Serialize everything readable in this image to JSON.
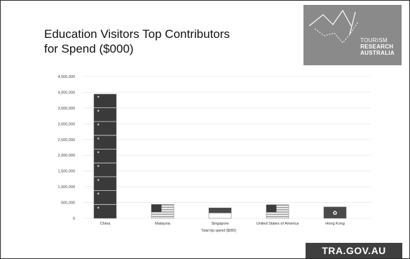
{
  "slide": {
    "title_line1": "Education Visitors Top Contributors",
    "title_line2": "for Spend ($000)",
    "logo": {
      "line1": "TOURISM",
      "line2": "RESEARCH",
      "line3": "AUSTRALIA"
    },
    "footer": "TRA.GOV.AU"
  },
  "chart_data": {
    "type": "bar",
    "title": "",
    "xlabel": "Total trip spend ($000)",
    "ylabel": "",
    "ylim": [
      0,
      4500000
    ],
    "yticks": [
      "0",
      "500,000",
      "1,000,000",
      "1,500,000",
      "2,000,000",
      "2,500,000",
      "3,000,000",
      "3,500,000",
      "4,000,000",
      "4,500,000"
    ],
    "categories": [
      "China",
      "Malaysia",
      "Singapore",
      "United States of America",
      "Hong Kong"
    ],
    "values": [
      3950000,
      440000,
      330000,
      430000,
      360000
    ],
    "bar_fill": "flag",
    "grid": true
  }
}
